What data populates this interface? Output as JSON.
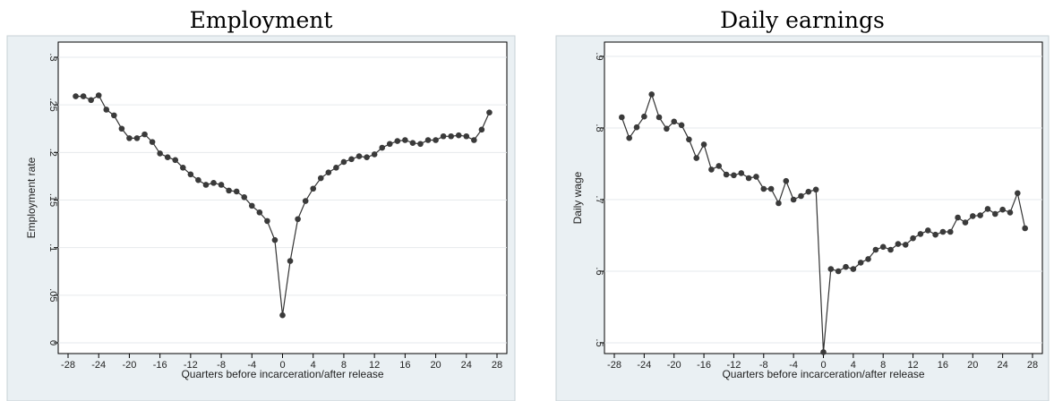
{
  "chart_data": [
    {
      "type": "line",
      "title": "Employment",
      "xlabel": "Quarters before incarceration/after release",
      "ylabel": "Employment rate",
      "xlim": [
        -28,
        28
      ],
      "ylim": [
        0,
        0.3
      ],
      "xticks": [
        -28,
        -24,
        -20,
        -16,
        -12,
        -8,
        -4,
        0,
        4,
        8,
        12,
        16,
        20,
        24,
        28
      ],
      "yticks": [
        0,
        0.05,
        0.1,
        0.15,
        0.2,
        0.25,
        0.3
      ],
      "ytick_labels": [
        "0",
        ".05",
        ".1",
        ".15",
        ".2",
        ".25",
        ".3"
      ],
      "grid": true,
      "x": [
        -27,
        -26,
        -25,
        -24,
        -23,
        -22,
        -21,
        -20,
        -19,
        -18,
        -17,
        -16,
        -15,
        -14,
        -13,
        -12,
        -11,
        -10,
        -9,
        -8,
        -7,
        -6,
        -5,
        -4,
        -3,
        -2,
        -1,
        0,
        1,
        2,
        3,
        4,
        5,
        6,
        7,
        8,
        9,
        10,
        11,
        12,
        13,
        14,
        15,
        16,
        17,
        18,
        19,
        20,
        21,
        22,
        23,
        24,
        25,
        26,
        27
      ],
      "values": [
        0.259,
        0.259,
        0.255,
        0.26,
        0.245,
        0.239,
        0.225,
        0.215,
        0.215,
        0.219,
        0.211,
        0.199,
        0.195,
        0.192,
        0.184,
        0.177,
        0.171,
        0.166,
        0.168,
        0.166,
        0.16,
        0.159,
        0.153,
        0.144,
        0.137,
        0.128,
        0.108,
        0.029,
        0.086,
        0.13,
        0.149,
        0.162,
        0.173,
        0.179,
        0.184,
        0.19,
        0.193,
        0.196,
        0.195,
        0.198,
        0.205,
        0.209,
        0.212,
        0.213,
        0.21,
        0.209,
        0.213,
        0.213,
        0.217,
        0.217,
        0.218,
        0.217,
        0.213,
        0.224,
        0.242
      ]
    },
    {
      "type": "line",
      "title": "Daily earnings",
      "xlabel": "Quarters before incarceration/after release",
      "ylabel": "Daily wage",
      "xlim": [
        -28,
        28
      ],
      "ylim": [
        0.5,
        0.9
      ],
      "xticks": [
        -28,
        -24,
        -20,
        -16,
        -12,
        -8,
        -4,
        0,
        4,
        8,
        12,
        16,
        20,
        24,
        28
      ],
      "yticks": [
        0.5,
        0.6,
        0.7,
        0.8,
        0.9
      ],
      "ytick_labels": [
        ".5",
        ".6",
        ".7",
        ".8",
        ".9"
      ],
      "grid": true,
      "x": [
        -27,
        -26,
        -25,
        -24,
        -23,
        -22,
        -21,
        -20,
        -19,
        -18,
        -17,
        -16,
        -15,
        -14,
        -13,
        -12,
        -11,
        -10,
        -9,
        -8,
        -7,
        -6,
        -5,
        -4,
        -3,
        -2,
        -1,
        0,
        1,
        2,
        3,
        4,
        5,
        6,
        7,
        8,
        9,
        10,
        11,
        12,
        13,
        14,
        15,
        16,
        17,
        18,
        19,
        20,
        21,
        22,
        23,
        24,
        25,
        26,
        27
      ],
      "values": [
        0.815,
        0.786,
        0.801,
        0.816,
        0.847,
        0.815,
        0.799,
        0.809,
        0.804,
        0.784,
        0.758,
        0.777,
        0.742,
        0.747,
        0.735,
        0.734,
        0.737,
        0.73,
        0.732,
        0.715,
        0.715,
        0.695,
        0.726,
        0.7,
        0.705,
        0.711,
        0.714,
        0.487,
        0.603,
        0.6,
        0.606,
        0.603,
        0.612,
        0.617,
        0.63,
        0.634,
        0.63,
        0.638,
        0.637,
        0.646,
        0.652,
        0.657,
        0.651,
        0.655,
        0.655,
        0.675,
        0.668,
        0.677,
        0.678,
        0.687,
        0.68,
        0.686,
        0.682,
        0.709,
        0.66
      ]
    }
  ]
}
